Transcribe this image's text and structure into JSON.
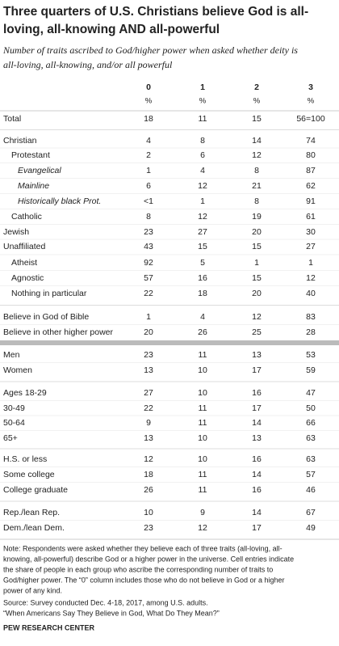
{
  "header": {
    "title_lines": [
      "Three quarters of U.S. Christians believe God is all-",
      "loving, all-knowing AND all-powerful"
    ],
    "subtitle_lines": [
      "Number of traits ascribed to God/higher power when asked whether deity is",
      "all-loving, all-knowing, and/or all powerful"
    ]
  },
  "table": {
    "columns": [
      "0",
      "1",
      "2",
      "3"
    ],
    "units": [
      "%",
      "%",
      "%",
      "%"
    ],
    "rows": [
      [
        "Total",
        "18",
        "11",
        "15",
        "56=100"
      ],
      [
        "Christian",
        "4",
        "8",
        "14",
        "74"
      ],
      [
        "Protestant",
        "2",
        "6",
        "12",
        "80"
      ],
      [
        "Evangelical",
        "1",
        "4",
        "8",
        "87"
      ],
      [
        "Mainline",
        "6",
        "12",
        "21",
        "62"
      ],
      [
        "Historically black Prot.",
        "<1",
        "1",
        "8",
        "91"
      ],
      [
        "Catholic",
        "8",
        "12",
        "19",
        "61"
      ],
      [
        "Jewish",
        "23",
        "27",
        "20",
        "30"
      ],
      [
        "Unaffiliated",
        "43",
        "15",
        "15",
        "27"
      ],
      [
        "Atheist",
        "92",
        "5",
        "1",
        "1"
      ],
      [
        "Agnostic",
        "57",
        "16",
        "15",
        "12"
      ],
      [
        "Nothing in particular",
        "22",
        "18",
        "20",
        "40"
      ],
      [
        "Believe in God of Bible",
        "1",
        "4",
        "12",
        "83"
      ],
      [
        "Believe in other higher power",
        "20",
        "26",
        "25",
        "28"
      ],
      [
        "Men",
        "23",
        "11",
        "13",
        "53"
      ],
      [
        "Women",
        "13",
        "10",
        "17",
        "59"
      ],
      [
        "Ages 18-29",
        "27",
        "10",
        "16",
        "47"
      ],
      [
        "30-49",
        "22",
        "11",
        "17",
        "50"
      ],
      [
        "50-64",
        "9",
        "11",
        "14",
        "66"
      ],
      [
        "65+",
        "13",
        "10",
        "13",
        "63"
      ],
      [
        "H.S. or less",
        "12",
        "10",
        "16",
        "63"
      ],
      [
        "Some college",
        "18",
        "11",
        "14",
        "57"
      ],
      [
        "College graduate",
        "26",
        "11",
        "16",
        "46"
      ],
      [
        "Rep./lean Rep.",
        "10",
        "9",
        "14",
        "67"
      ],
      [
        "Dem./lean Dem.",
        "23",
        "12",
        "17",
        "49"
      ]
    ]
  },
  "footer": {
    "note_lines": [
      "Note: Respondents were asked whether they believe each of three traits (all-loving, all-",
      "knowing, all-powerful) describe God or a higher power in the universe. Cell entries indicate",
      "the share of people in each group who ascribe the corresponding number of traits to",
      "God/higher power. The “0” column includes those who do not believe in God or a higher",
      "power of any kind."
    ],
    "source_lines": [
      "Source: Survey conducted Dec. 4-18, 2017, among U.S. adults.",
      "“When Americans Say They Believe in God, What Do They Mean?”"
    ],
    "org": "PEW RESEARCH CENTER"
  }
}
